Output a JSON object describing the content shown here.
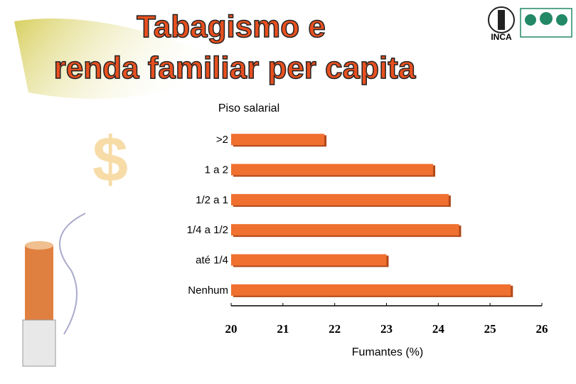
{
  "chart_data": {
    "type": "hbar",
    "title_lines": [
      "Tabagismo e",
      "renda familiar per capita"
    ],
    "logo_text": "INCA",
    "symbol": "$",
    "y_label": "Piso salarial",
    "x_label": "Fumantes (%)",
    "categories": [
      ">2",
      "1 a 2",
      "1/2 a 1",
      "1/4 a 1/2",
      "até 1/4",
      "Nenhum"
    ],
    "values": [
      21.8,
      23.9,
      24.2,
      24.4,
      23.0,
      25.4
    ],
    "color": "#f07030",
    "xlim": [
      20,
      26
    ],
    "xticks": [
      20,
      21,
      22,
      23,
      24,
      25,
      26
    ]
  }
}
